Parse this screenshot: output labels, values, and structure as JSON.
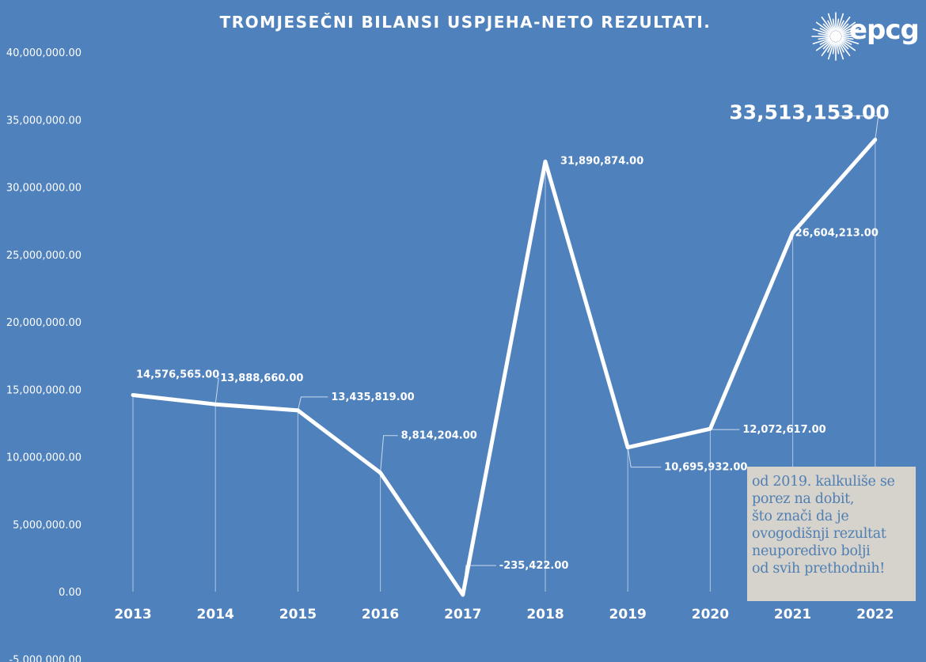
{
  "chart_data": {
    "type": "line",
    "title": "TROMJESEČNI BILANSI USPJEHA-NETO REZULTATI.",
    "categories": [
      "2013",
      "2014",
      "2015",
      "2016",
      "2017",
      "2018",
      "2019",
      "2020",
      "2021",
      "2022"
    ],
    "series": [
      {
        "values": [
          14576565,
          13888660,
          13435819,
          8814204,
          -235422,
          31890874,
          10695932,
          12072617,
          26604213,
          33513153
        ]
      }
    ],
    "data_labels": [
      "14,576,565.00",
      "13,888,660.00",
      "13,435,819.00",
      "8,814,204.00",
      "-235,422.00",
      "31,890,874.00",
      "10,695,932.00",
      "12,072,617.00",
      "26,604,213.00",
      "33,513,153.00"
    ],
    "y_ticks": [
      "-5,000,000.00",
      "0.00",
      "5,000,000.00",
      "10,000,000.00",
      "15,000,000.00",
      "20,000,000.00",
      "25,000,000.00",
      "30,000,000.00",
      "35,000,000.00",
      "40,000,000.00"
    ],
    "y_tick_values": [
      -5000000,
      0,
      5000000,
      10000000,
      15000000,
      20000000,
      25000000,
      30000000,
      35000000,
      40000000
    ],
    "ylim": [
      -5000000,
      40000000
    ],
    "grid": false,
    "line_color": "#ffffff",
    "background_color": "#4f81bd",
    "xlabel": "",
    "ylabel": ""
  },
  "logo": {
    "text": "epcg"
  },
  "note": {
    "text": "od 2019. kalkuliše se\nporez na dobit,\nšto znači da je\novogodišnji rezultat\nneuporedivo bolji\nod svih prethodnih!"
  }
}
